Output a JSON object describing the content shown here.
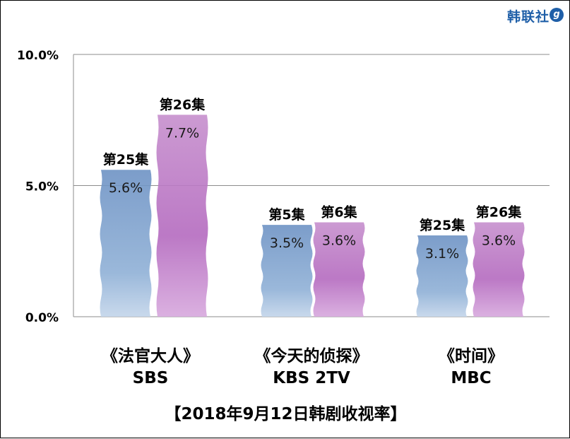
{
  "header": {
    "logo_text": "韩联社",
    "logo_mark": "g"
  },
  "chart_data": {
    "type": "bar",
    "title": "【2018年9月12日韩剧收视率】",
    "y_ticks": [
      "10.0%",
      "5.0%",
      "0.0%"
    ],
    "ylim": [
      0,
      10
    ],
    "grid": true,
    "colors": {
      "blue": "#7c9ecb",
      "purple": "#c17ec9"
    },
    "groups": [
      {
        "name": "《法官大人》",
        "network": "SBS",
        "bars": [
          {
            "episode": "第25集",
            "value": 5.6,
            "label": "5.6%",
            "color": "blue"
          },
          {
            "episode": "第26集",
            "value": 7.7,
            "label": "7.7%",
            "color": "purple"
          }
        ]
      },
      {
        "name": "《今天的侦探》",
        "network": "KBS 2TV",
        "bars": [
          {
            "episode": "第5集",
            "value": 3.5,
            "label": "3.5%",
            "color": "blue"
          },
          {
            "episode": "第6集",
            "value": 3.6,
            "label": "3.6%",
            "color": "purple"
          }
        ]
      },
      {
        "name": "《时间》",
        "network": "MBC",
        "bars": [
          {
            "episode": "第25集",
            "value": 3.1,
            "label": "3.1%",
            "color": "blue"
          },
          {
            "episode": "第26集",
            "value": 3.6,
            "label": "3.6%",
            "color": "purple"
          }
        ]
      }
    ]
  }
}
